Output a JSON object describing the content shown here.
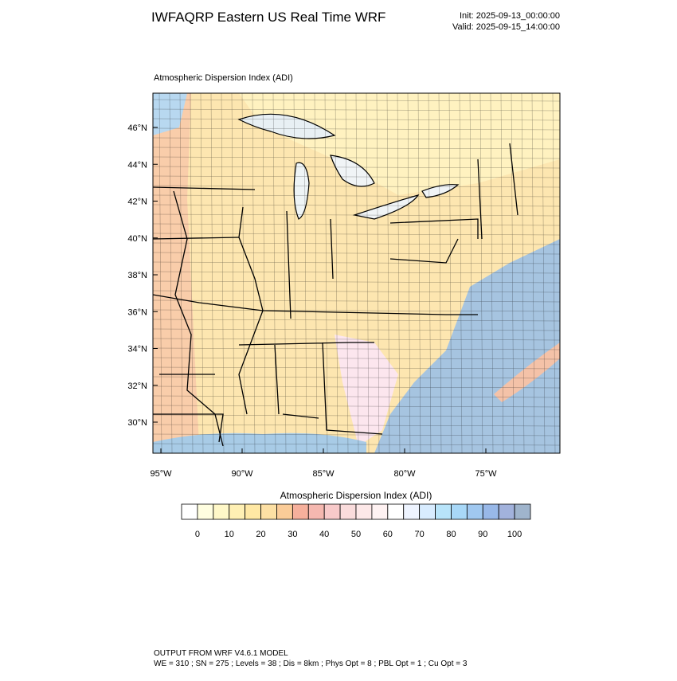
{
  "header": {
    "title": "IWFAQRP Eastern US Real Time WRF",
    "init": "Init: 2025-09-13_00:00:00",
    "valid": "Valid: 2025-09-15_14:00:00"
  },
  "map": {
    "title": "Atmospheric Dispersion Index   (ADI)",
    "lat_labels": [
      "46°N",
      "44°N",
      "42°N",
      "40°N",
      "38°N",
      "36°N",
      "34°N",
      "32°N",
      "30°N"
    ],
    "lon_labels": [
      "95°W",
      "90°W",
      "85°W",
      "80°W",
      "75°W"
    ]
  },
  "colorbar": {
    "title": "Atmospheric Dispersion Index  (ADI)",
    "ticks": [
      "0",
      "10",
      "20",
      "30",
      "40",
      "50",
      "60",
      "70",
      "80",
      "90",
      "100"
    ],
    "colors": [
      "#ffffff",
      "#fffee0",
      "#fff8c8",
      "#fff0b4",
      "#ffe8a4",
      "#fde0a4",
      "#fbcc98",
      "#f6b09c",
      "#f5b8b0",
      "#f8caca",
      "#fadcdc",
      "#fde8e8",
      "#fff2f2",
      "#ffffff",
      "#eef4ff",
      "#d8ecff",
      "#b8e4fa",
      "#a8d8f8",
      "#a0c8f0",
      "#98b8e8",
      "#a2b2dc",
      "#9fb4cc"
    ]
  },
  "footer": {
    "line1": "OUTPUT FROM WRF V4.6.1 MODEL",
    "line2": "WE = 310 ; SN = 275 ; Levels = 38 ; Dis = 8km ; Phys Opt = 8 ; PBL Opt = 1 ; Cu Opt = 3"
  }
}
